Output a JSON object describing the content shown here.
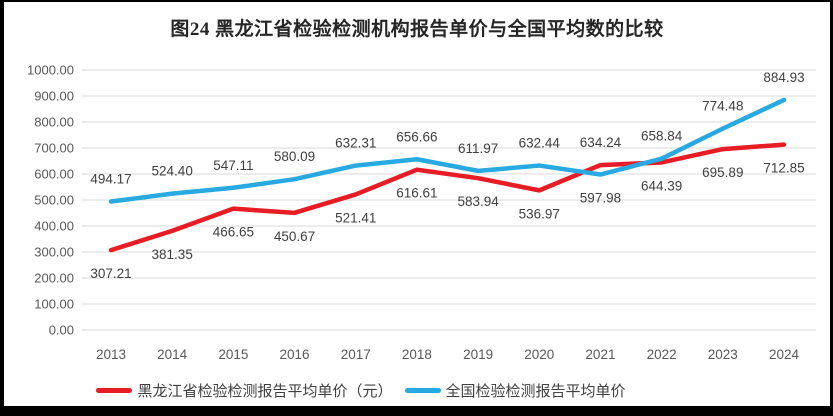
{
  "title": "图24 黑龙江省检验检测机构报告单价与全国平均数的比较",
  "chart_data": {
    "type": "line",
    "title": "图24 黑龙江省检验检测机构报告单价与全国平均数的比较",
    "categories": [
      "2013",
      "2014",
      "2015",
      "2016",
      "2017",
      "2018",
      "2019",
      "2020",
      "2021",
      "2022",
      "2023",
      "2024"
    ],
    "series": [
      {
        "name": "黑龙江省检验检测报告平均单价（元）",
        "color": "#e81c24",
        "values": [
          307.21,
          381.35,
          466.65,
          450.67,
          521.41,
          616.61,
          583.94,
          536.97,
          634.24,
          644.39,
          695.89,
          712.85
        ]
      },
      {
        "name": "全国检验检测报告平均单价",
        "color": "#29a9e1",
        "values": [
          494.17,
          524.4,
          547.11,
          580.09,
          632.31,
          656.66,
          611.97,
          632.44,
          597.98,
          658.84,
          774.48,
          884.93
        ]
      }
    ],
    "ylim": [
      0,
      1000
    ],
    "ytick_step": 100,
    "grid": true,
    "value_labels": true,
    "legend_position": "bottom"
  },
  "colors": {
    "gridline": "#d9d9d9",
    "axis_text": "#595959",
    "data_label": "#404040",
    "title_text": "#262626",
    "frame_border": "#000000"
  }
}
